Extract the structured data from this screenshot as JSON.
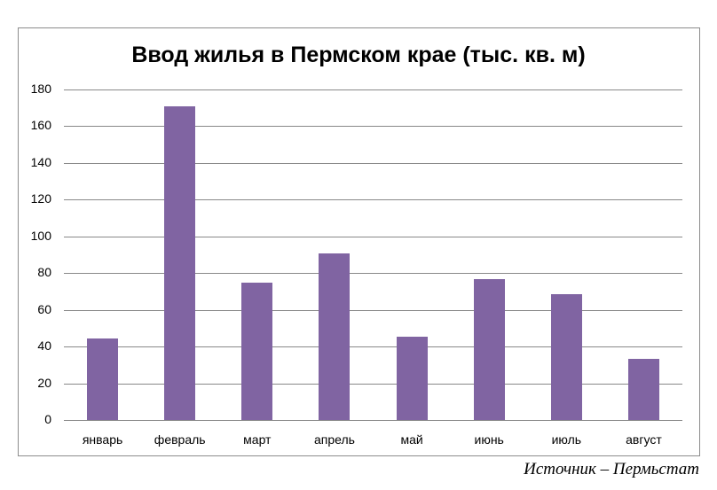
{
  "chart_data": {
    "type": "bar",
    "title": "Ввод жилья в Пермском крае (тыс. кв. м)",
    "categories": [
      "январь",
      "февраль",
      "март",
      "апрель",
      "май",
      "июнь",
      "июль",
      "август"
    ],
    "values": [
      44.4,
      170.8,
      74.8,
      90.7,
      45.4,
      76.7,
      68.5,
      33.3
    ],
    "xlabel": "",
    "ylabel": "",
    "ylim": [
      0,
      180
    ],
    "yticks": [
      0,
      20,
      40,
      60,
      80,
      100,
      120,
      140,
      160,
      180
    ],
    "grid": true,
    "legend": "none",
    "bar_color": "#8064a2"
  },
  "source": "Источник – Пермьстат"
}
